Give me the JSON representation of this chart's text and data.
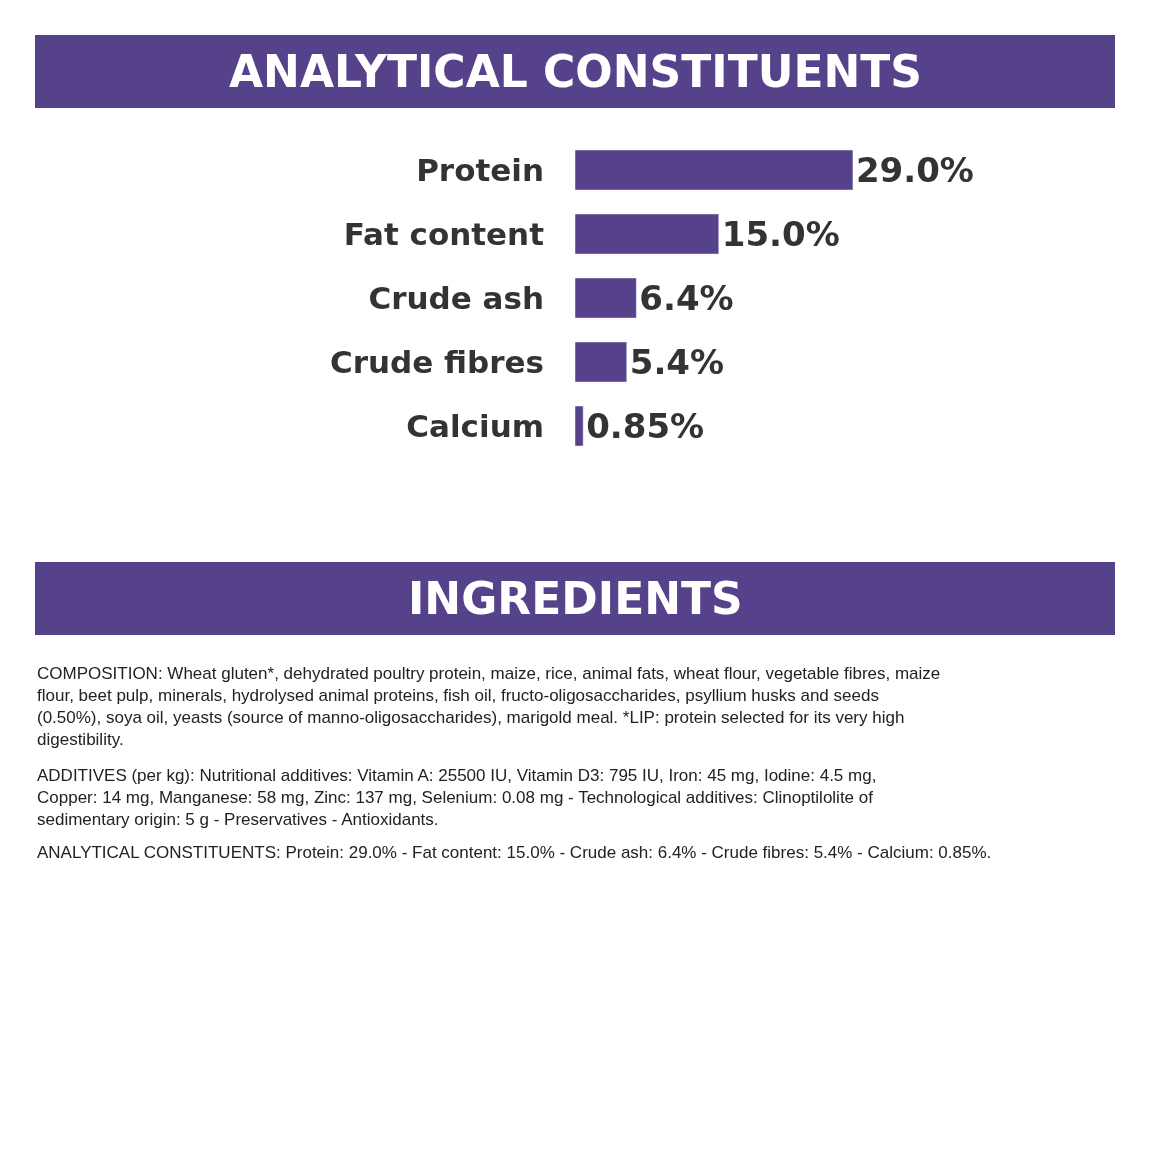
{
  "chart_data": {
    "type": "bar",
    "orientation": "horizontal",
    "title": "ANALYTICAL CONSTITUENTS",
    "categories": [
      "Protein",
      "Fat content",
      "Crude ash",
      "Crude fibres",
      "Calcium"
    ],
    "values": [
      29.0,
      15.0,
      6.4,
      5.4,
      0.85
    ],
    "value_labels": [
      "29.0%",
      "15.0%",
      "6.4%",
      "5.4%",
      "0.85%"
    ],
    "color": "#55428a",
    "xlim": [
      0,
      60
    ],
    "tick_labels": "y",
    "annotations": [
      "INGREDIENTS",
      "COMPOSITION: Wheat gluten*, dehydrated poultry protein, maize, rice, animal fats, wheat flour, vegetable fibres, maize flour, beet pulp, minerals, hydrolysed animal proteins, fish oil, fructo-oligosaccharides, psyllium husks and seeds (0.50%), soya oil, yeasts (source of manno-oligosaccharides), marigold meal. *LIP: protein selected for its very high digestibility.",
      "ADDITIVES (per kg): Nutritional additives: Vitamin A: 25500 IU, Vitamin D3: 795 IU, Iron: 45 mg, Iodine: 4.5 mg, Copper: 14 mg, Manganese: 58 mg, Zinc: 137 mg, Selenium: 0.08 mg - Technological additives: Clinoptilolite of sedimentary origin: 5 g - Preservatives - Antioxidants.",
      "ANALYTICAL CONSTITUENTS: Protein: 29.0% - Fat content: 15.0% - Crude ash: 6.4% - Crude fibres: 5.4% - Calcium: 0.85%."
    ]
  }
}
